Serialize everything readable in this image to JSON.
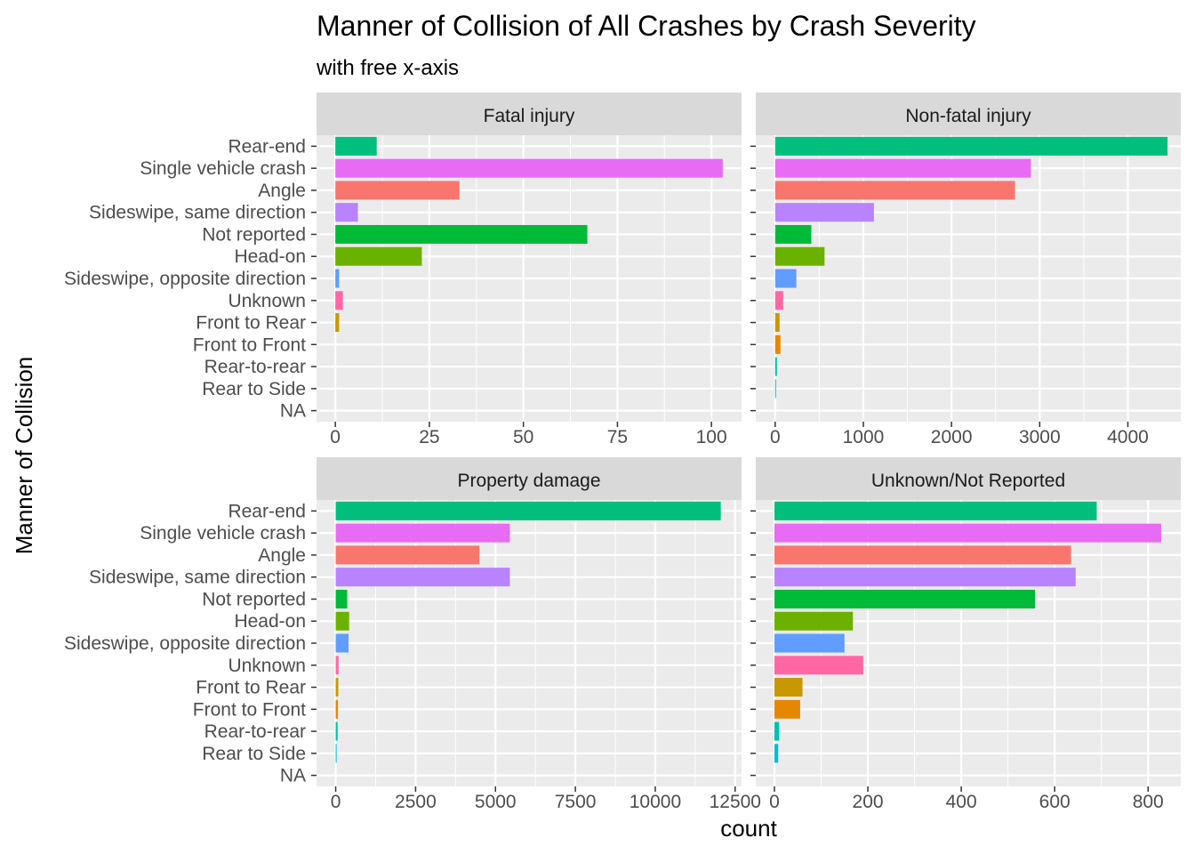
{
  "chart_data": {
    "type": "bar",
    "orientation": "horizontal",
    "title": "Manner of Collision of All Crashes by Crash Severity",
    "subtitle": "with free x-axis",
    "xlabel": "count",
    "ylabel": "Manner of Collision",
    "grid": true,
    "legend": "none",
    "categories": [
      "NA",
      "Rear to Side",
      "Rear-to-rear",
      "Front to Front",
      "Front to Rear",
      "Unknown",
      "Sideswipe, opposite direction",
      "Head-on",
      "Not reported",
      "Sideswipe, same direction",
      "Angle",
      "Single vehicle crash",
      "Rear-end"
    ],
    "colors": [
      "#F8766D",
      "#E58700",
      "#C99800",
      "#A3A500",
      "#6BB100",
      "#00BA38",
      "#00BF7D",
      "#00C0AF",
      "#00BCD8",
      "#00B0F6",
      "#619CFF",
      "#B983FF",
      "#E76BF3",
      "#FD61D1",
      "#FF67A4"
    ],
    "category_colors": [
      "#00BCD8",
      "#00BCD8",
      "#00C0AF",
      "#E58700",
      "#C99800",
      "#FF67A4",
      "#619CFF",
      "#6BB100",
      "#00BA38",
      "#B983FF",
      "#F8766D",
      "#E76BF3",
      "#00BF7D"
    ],
    "panels": [
      {
        "name": "Fatal injury",
        "xlim": [
          -5,
          108
        ],
        "ticks": [
          0,
          25,
          50,
          75,
          100
        ],
        "values": [
          0,
          0,
          0,
          0,
          1,
          2,
          1,
          23,
          67,
          6,
          33,
          103,
          11
        ]
      },
      {
        "name": "Non-fatal injury",
        "xlim": [
          -220,
          4600
        ],
        "ticks": [
          0,
          1000,
          2000,
          3000,
          4000
        ],
        "values": [
          0,
          5,
          20,
          60,
          50,
          90,
          240,
          560,
          410,
          1120,
          2720,
          2900,
          4450
        ]
      },
      {
        "name": "Property damage",
        "xlim": [
          -600,
          12700
        ],
        "ticks": [
          0,
          2500,
          5000,
          7500,
          10000,
          12500
        ],
        "values": [
          0,
          30,
          60,
          70,
          80,
          90,
          400,
          420,
          360,
          5450,
          4500,
          5450,
          12050
        ]
      },
      {
        "name": "Unknown/Not Reported",
        "xlim": [
          -40,
          870
        ],
        "ticks": [
          0,
          200,
          400,
          600,
          800
        ],
        "values": [
          0,
          8,
          10,
          55,
          60,
          190,
          150,
          168,
          558,
          645,
          635,
          828,
          690
        ]
      }
    ]
  }
}
